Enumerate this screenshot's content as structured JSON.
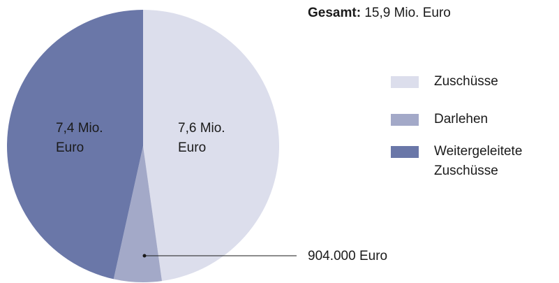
{
  "chart_data": {
    "type": "pie",
    "total_label": "Gesamt:",
    "total": "15,9 Mio. Euro",
    "categories": [
      "Zuschüsse",
      "Darlehen",
      "Weitergeleitete Zuschüsse"
    ],
    "values": [
      7600000,
      904000,
      7400000
    ],
    "value_labels": [
      "7,6 Mio. Euro",
      "904.000 Euro",
      "7,4 Mio. Euro"
    ],
    "colors": [
      "#dcdeec",
      "#a3a9c8",
      "#6a77a8"
    ]
  }
}
